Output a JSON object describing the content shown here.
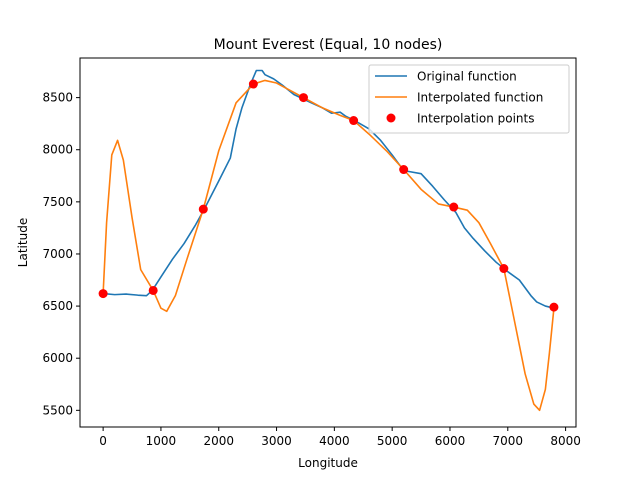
{
  "chart_data": {
    "type": "line",
    "title": "Mount Everest (Equal, 10 nodes)",
    "xlabel": "Longitude",
    "ylabel": "Latitude",
    "xlim": [
      -400,
      8180
    ],
    "ylim": [
      5340,
      8880
    ],
    "xticks": [
      0,
      1000,
      2000,
      3000,
      4000,
      5000,
      6000,
      7000,
      8000
    ],
    "yticks": [
      5500,
      6000,
      6500,
      7000,
      7500,
      8000,
      8500
    ],
    "grid": false,
    "legend_position": "upper right",
    "colors": {
      "original": "#1f77b4",
      "interpolated": "#ff7f0e",
      "points": "#ff0000"
    },
    "series": [
      {
        "name": "Original function",
        "kind": "line",
        "x": [
          0,
          200,
          400,
          600,
          750,
          850,
          1000,
          1200,
          1400,
          1600,
          1750,
          2000,
          2200,
          2300,
          2400,
          2550,
          2650,
          2750,
          2800,
          2950,
          3100,
          3300,
          3450,
          3600,
          3800,
          3950,
          4100,
          4200,
          4350,
          4600,
          4800,
          5000,
          5200,
          5300,
          5500,
          5700,
          5900,
          6100,
          6250,
          6400,
          6600,
          6800,
          7000,
          7200,
          7400,
          7500,
          7650,
          7800
        ],
        "y": [
          6620,
          6610,
          6615,
          6605,
          6600,
          6650,
          6780,
          6950,
          7100,
          7280,
          7430,
          7700,
          7920,
          8200,
          8400,
          8630,
          8760,
          8760,
          8720,
          8680,
          8620,
          8530,
          8490,
          8450,
          8400,
          8350,
          8360,
          8320,
          8280,
          8200,
          8090,
          7950,
          7800,
          7790,
          7770,
          7650,
          7520,
          7400,
          7250,
          7150,
          7030,
          6920,
          6830,
          6750,
          6600,
          6540,
          6500,
          6480
        ]
      },
      {
        "name": "Interpolated function",
        "kind": "line",
        "x": [
          0,
          60,
          150,
          250,
          350,
          500,
          650,
          866,
          1000,
          1100,
          1250,
          1450,
          1733,
          2000,
          2300,
          2600,
          2800,
          3000,
          3200,
          3466,
          3800,
          4100,
          4333,
          4600,
          4900,
          5199,
          5500,
          5800,
          6065,
          6300,
          6500,
          6700,
          6932,
          7100,
          7300,
          7450,
          7550,
          7650,
          7720,
          7800
        ],
        "y": [
          6620,
          7300,
          7950,
          8090,
          7900,
          7350,
          6850,
          6650,
          6480,
          6450,
          6600,
          6950,
          7430,
          7990,
          8450,
          8630,
          8665,
          8640,
          8580,
          8500,
          8400,
          8330,
          8280,
          8150,
          7990,
          7810,
          7620,
          7480,
          7450,
          7420,
          7300,
          7100,
          6860,
          6400,
          5850,
          5560,
          5500,
          5700,
          6050,
          6490
        ]
      },
      {
        "name": "Interpolation points",
        "kind": "scatter",
        "x": [
          0,
          866,
          1733,
          2599,
          3466,
          4333,
          5199,
          6065,
          6932,
          7798
        ],
        "y": [
          6620,
          6650,
          7430,
          8630,
          8500,
          8280,
          7810,
          7450,
          6860,
          6490
        ]
      }
    ]
  }
}
